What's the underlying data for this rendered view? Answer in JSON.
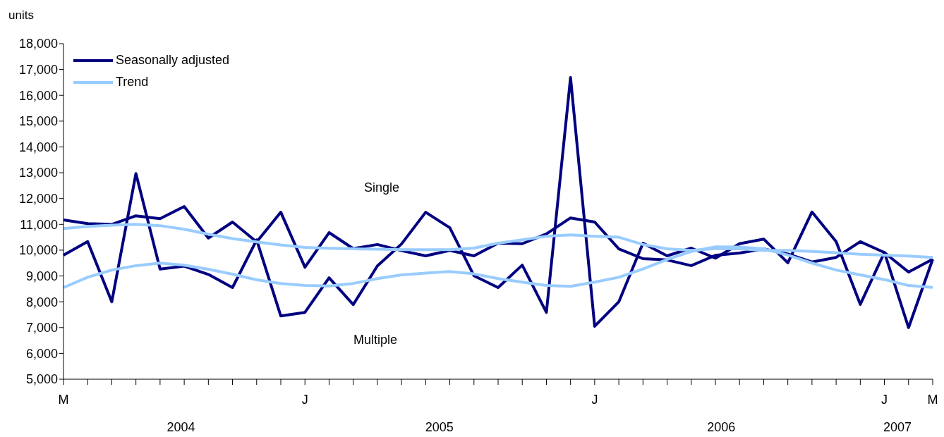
{
  "chart_data": {
    "type": "line",
    "ylabel": "units",
    "categories": [
      "M",
      null,
      null,
      null,
      null,
      null,
      null,
      null,
      null,
      null,
      "J",
      null,
      null,
      null,
      null,
      null,
      null,
      null,
      null,
      null,
      null,
      null,
      "J",
      null,
      null,
      null,
      null,
      null,
      null,
      null,
      null,
      null,
      null,
      null,
      "J",
      null,
      "M"
    ],
    "series": [
      {
        "name": "Seasonally adjusted",
        "color": "#000080",
        "values": [
          11170,
          11030,
          11000,
          11330,
          11220,
          11690,
          10470,
          11090,
          10320,
          11470,
          9340,
          10680,
          10060,
          10220,
          9980,
          9780,
          9990,
          9780,
          10270,
          10250,
          10630,
          11250,
          11090,
          10050,
          9670,
          9620,
          9400,
          9800,
          9890,
          10050,
          9850,
          9540,
          9720,
          10330,
          9910,
          9150,
          9650
        ]
      },
      {
        "color": "#000080",
        "values": [
          9810,
          10330,
          8000,
          12970,
          9270,
          9380,
          9060,
          8550,
          10400,
          7450,
          7590,
          8930,
          7890,
          9390,
          10240,
          11470,
          10870,
          9010,
          8550,
          9420,
          7590,
          16690,
          7050,
          8000,
          10270,
          9780,
          10080,
          9690,
          10250,
          10430,
          9510,
          11480,
          10330,
          7900,
          9910,
          7000,
          9650
        ]
      },
      {
        "name": "Trend",
        "color": "#99ccff",
        "values": [
          10840,
          10920,
          10970,
          11000,
          10950,
          10810,
          10620,
          10450,
          10320,
          10200,
          10110,
          10070,
          10050,
          10040,
          10020,
          10020,
          10020,
          10080,
          10270,
          10400,
          10540,
          10590,
          10540,
          10500,
          10220,
          10050,
          9990,
          10060,
          10050,
          9990,
          9990,
          9950,
          9900,
          9840,
          9810,
          9770,
          9720
        ]
      },
      {
        "color": "#99ccff",
        "values": [
          8550,
          8950,
          9230,
          9400,
          9500,
          9420,
          9260,
          9070,
          8850,
          8710,
          8630,
          8610,
          8710,
          8900,
          9040,
          9110,
          9170,
          9080,
          8900,
          8760,
          8630,
          8600,
          8760,
          8950,
          9270,
          9640,
          9950,
          10130,
          10120,
          10050,
          9810,
          9500,
          9230,
          9040,
          8860,
          8630,
          8560
        ]
      }
    ],
    "ylim": [
      5000,
      18000
    ],
    "yticks": [
      {
        "value": 5000,
        "label": "5,000"
      },
      {
        "value": 6000,
        "label": "6,000"
      },
      {
        "value": 7000,
        "label": "7,000"
      },
      {
        "value": 8000,
        "label": "8,000"
      },
      {
        "value": 9000,
        "label": "9,000"
      },
      {
        "value": 10000,
        "label": "10,000"
      },
      {
        "value": 11000,
        "label": "11,000"
      },
      {
        "value": 12000,
        "label": "12,000"
      },
      {
        "value": 13000,
        "label": "13,000"
      },
      {
        "value": 14000,
        "label": "14,000"
      },
      {
        "value": 15000,
        "label": "15,000"
      },
      {
        "value": 16000,
        "label": "16,000"
      },
      {
        "value": 17000,
        "label": "17,000"
      },
      {
        "value": 18000,
        "label": "18,000"
      }
    ],
    "grid": false,
    "legend": "top left",
    "marker": "none",
    "line_style": "solid",
    "annotations": [
      "Single",
      "Multiple",
      "2004",
      "2005",
      "2006",
      "2007"
    ]
  }
}
